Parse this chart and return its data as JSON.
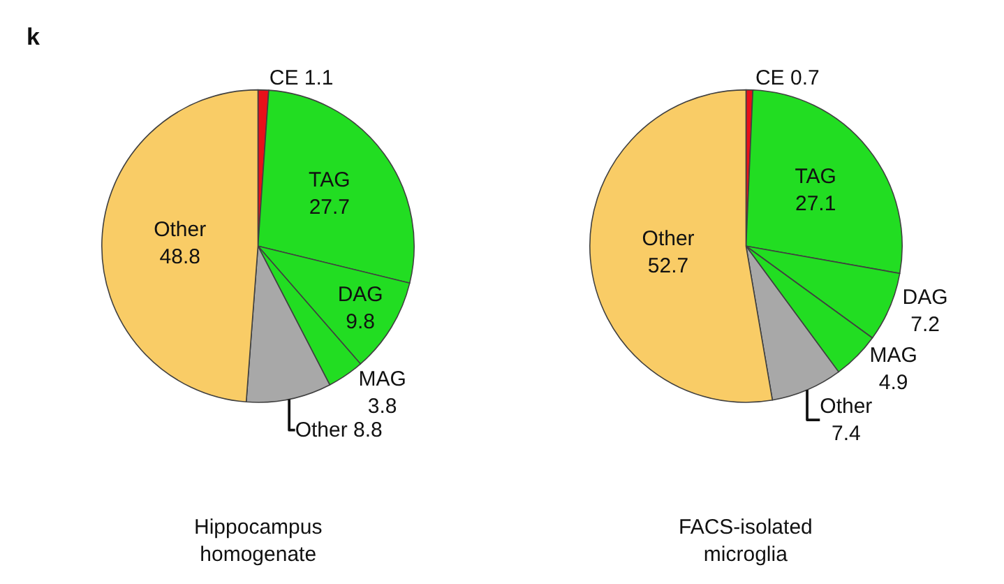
{
  "chart_data": [
    {
      "type": "pie",
      "title": "Hippocampus homogenate",
      "annotations": [
        "k"
      ],
      "categories": [
        "CE",
        "TAG",
        "DAG",
        "MAG",
        "Other",
        "Other"
      ],
      "values": [
        1.1,
        27.7,
        9.8,
        3.8,
        8.8,
        48.8
      ],
      "colors": [
        "#e8101a",
        "#22dd22",
        "#22dd22",
        "#22dd22",
        "#a8a8a8",
        "#f9cc66"
      ],
      "data_labels": true
    },
    {
      "type": "pie",
      "title": "FACS-isolated microglia",
      "categories": [
        "CE",
        "TAG",
        "DAG",
        "MAG",
        "Other",
        "Other"
      ],
      "values": [
        0.7,
        27.1,
        7.2,
        4.9,
        7.4,
        52.7
      ],
      "colors": [
        "#e8101a",
        "#22dd22",
        "#22dd22",
        "#22dd22",
        "#a8a8a8",
        "#f9cc66"
      ],
      "data_labels": true
    }
  ]
}
